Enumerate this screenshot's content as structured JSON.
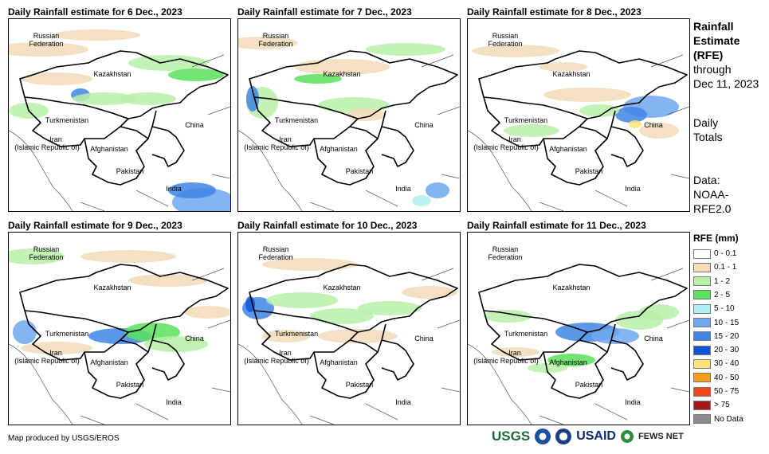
{
  "panels": [
    {
      "title": "Daily Rainfall estimate for 6 Dec., 2023"
    },
    {
      "title": "Daily Rainfall estimate for 7 Dec., 2023"
    },
    {
      "title": "Daily Rainfall estimate for 8 Dec., 2023"
    },
    {
      "title": "Daily Rainfall estimate for 9 Dec., 2023"
    },
    {
      "title": "Daily Rainfall estimate for 10 Dec., 2023"
    },
    {
      "title": "Daily Rainfall estimate for 11 Dec., 2023"
    }
  ],
  "map_labels": {
    "russia_1": "Russian",
    "russia_2": "Federation",
    "kazakhstan": "Kazakhstan",
    "turkmenistan": "Turkmenistan",
    "iran_1": "Iran",
    "iran_2": "(Islamic Republic of)",
    "afghanistan": "Afghanistan",
    "pakistan": "Pakistan",
    "china": "China",
    "india": "India"
  },
  "sidebar": {
    "title_1": "Rainfall",
    "title_2": "Estimate",
    "title_3": "(RFE)",
    "through": "through",
    "date": "Dec 11, 2023",
    "daily": "Daily",
    "totals": "Totals",
    "data_label": "Data:",
    "source_1": "NOAA-",
    "source_2": "RFE2.0"
  },
  "legend": {
    "title": "RFE (mm)",
    "items": [
      {
        "label": "0 - 0.1",
        "color": "#ffffff"
      },
      {
        "label": "0.1 - 1",
        "color": "#f2dcb8"
      },
      {
        "label": "1 - 2",
        "color": "#b9f0a8"
      },
      {
        "label": "2 - 5",
        "color": "#5be05b"
      },
      {
        "label": "5 - 10",
        "color": "#b3eef5"
      },
      {
        "label": "10 - 15",
        "color": "#6fa8ee"
      },
      {
        "label": "15 - 20",
        "color": "#3f86e6"
      },
      {
        "label": "20 - 30",
        "color": "#1654d6"
      },
      {
        "label": "30 - 40",
        "color": "#ffe37a"
      },
      {
        "label": "40 - 50",
        "color": "#f59d16"
      },
      {
        "label": "50 - 75",
        "color": "#f0461b"
      },
      {
        "label": "> 75",
        "color": "#a31a1a"
      },
      {
        "label": "No Data",
        "color": "#8c8c8c"
      }
    ]
  },
  "footer": {
    "credit": "Map produced by USGS/EROS",
    "usgs": "USGS",
    "usaid": "USAID",
    "fews": "FEWS NET"
  }
}
